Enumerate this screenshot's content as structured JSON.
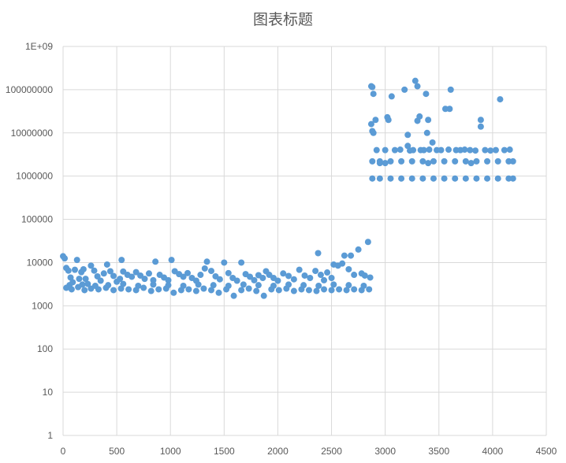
{
  "chart_data": {
    "type": "scatter",
    "title": "图表标题",
    "xlabel": "",
    "ylabel": "",
    "xlim": [
      0,
      4500
    ],
    "ylim": [
      1,
      1000000000
    ],
    "y_scale": "log",
    "grid": "on",
    "legend": "none",
    "marker_color": "#5b9bd5",
    "x_ticks": [
      "0",
      "500",
      "1000",
      "1500",
      "2000",
      "2500",
      "3000",
      "3500",
      "4000",
      "4500"
    ],
    "y_ticks": [
      "1",
      "10",
      "100",
      "1000",
      "10000",
      "100000",
      "1000000",
      "10000000",
      "100000000",
      "1E+09"
    ],
    "series": [
      {
        "points": [
          [
            0,
            14000
          ],
          [
            15,
            12500
          ],
          [
            30,
            7500
          ],
          [
            50,
            6500
          ],
          [
            70,
            4500
          ],
          [
            90,
            3500
          ],
          [
            110,
            6800
          ],
          [
            130,
            11500
          ],
          [
            150,
            4200
          ],
          [
            170,
            6000
          ],
          [
            190,
            7000
          ],
          [
            210,
            4200
          ],
          [
            230,
            3200
          ],
          [
            260,
            8500
          ],
          [
            290,
            6500
          ],
          [
            320,
            4800
          ],
          [
            350,
            3800
          ],
          [
            380,
            5600
          ],
          [
            410,
            9000
          ],
          [
            440,
            6300
          ],
          [
            470,
            4900
          ],
          [
            500,
            3600
          ],
          [
            530,
            4200
          ],
          [
            545,
            11500
          ],
          [
            560,
            6200
          ],
          [
            600,
            5200
          ],
          [
            640,
            4700
          ],
          [
            680,
            6000
          ],
          [
            720,
            5000
          ],
          [
            760,
            4200
          ],
          [
            800,
            5600
          ],
          [
            840,
            3900
          ],
          [
            860,
            10500
          ],
          [
            900,
            5200
          ],
          [
            940,
            4500
          ],
          [
            980,
            3900
          ],
          [
            1010,
            11500
          ],
          [
            1040,
            6300
          ],
          [
            1080,
            5400
          ],
          [
            1120,
            4700
          ],
          [
            1160,
            5700
          ],
          [
            1200,
            4400
          ],
          [
            1240,
            3800
          ],
          [
            1280,
            5200
          ],
          [
            1320,
            7300
          ],
          [
            1340,
            10500
          ],
          [
            1380,
            6400
          ],
          [
            1420,
            4800
          ],
          [
            1460,
            4100
          ],
          [
            1500,
            10000
          ],
          [
            1540,
            5700
          ],
          [
            1580,
            4400
          ],
          [
            1620,
            3800
          ],
          [
            1660,
            10000
          ],
          [
            1700,
            5400
          ],
          [
            1740,
            4700
          ],
          [
            1780,
            3900
          ],
          [
            1820,
            5100
          ],
          [
            1860,
            4400
          ],
          [
            1890,
            6300
          ],
          [
            1920,
            5200
          ],
          [
            1960,
            4400
          ],
          [
            2000,
            3800
          ],
          [
            2050,
            5600
          ],
          [
            2100,
            4900
          ],
          [
            2150,
            4100
          ],
          [
            2200,
            6800
          ],
          [
            2250,
            5000
          ],
          [
            2300,
            4400
          ],
          [
            2350,
            6400
          ],
          [
            2375,
            16500
          ],
          [
            2400,
            5200
          ],
          [
            2430,
            3900
          ],
          [
            2460,
            5900
          ],
          [
            2500,
            4400
          ],
          [
            2520,
            9000
          ],
          [
            2560,
            8500
          ],
          [
            2600,
            9500
          ],
          [
            2620,
            14500
          ],
          [
            2660,
            7000
          ],
          [
            2680,
            14500
          ],
          [
            2710,
            5200
          ],
          [
            2750,
            20000
          ],
          [
            2780,
            5600
          ],
          [
            2810,
            5000
          ],
          [
            2840,
            30000
          ],
          [
            2860,
            4500
          ],
          [
            30,
            2600
          ],
          [
            80,
            2400
          ],
          [
            140,
            2700
          ],
          [
            200,
            2300
          ],
          [
            260,
            2500
          ],
          [
            330,
            2400
          ],
          [
            400,
            2600
          ],
          [
            470,
            2300
          ],
          [
            540,
            2500
          ],
          [
            610,
            2400
          ],
          [
            680,
            2300
          ],
          [
            750,
            2600
          ],
          [
            820,
            2200
          ],
          [
            890,
            2400
          ],
          [
            960,
            2500
          ],
          [
            1030,
            2000
          ],
          [
            1100,
            2300
          ],
          [
            1170,
            2400
          ],
          [
            1240,
            2200
          ],
          [
            1310,
            2500
          ],
          [
            1380,
            2300
          ],
          [
            1450,
            2000
          ],
          [
            1520,
            2400
          ],
          [
            1590,
            1700
          ],
          [
            1660,
            2300
          ],
          [
            1730,
            2500
          ],
          [
            1800,
            2200
          ],
          [
            1870,
            1700
          ],
          [
            1940,
            2400
          ],
          [
            2010,
            2300
          ],
          [
            2080,
            2500
          ],
          [
            2150,
            2200
          ],
          [
            2220,
            2400
          ],
          [
            2290,
            2300
          ],
          [
            2360,
            2200
          ],
          [
            2430,
            2400
          ],
          [
            2500,
            2300
          ],
          [
            2570,
            2400
          ],
          [
            2640,
            2300
          ],
          [
            2710,
            2400
          ],
          [
            2780,
            2300
          ],
          [
            2850,
            2400
          ],
          [
            60,
            3000
          ],
          [
            180,
            3100
          ],
          [
            300,
            2900
          ],
          [
            420,
            3000
          ],
          [
            560,
            3200
          ],
          [
            700,
            2900
          ],
          [
            840,
            3100
          ],
          [
            980,
            3000
          ],
          [
            1120,
            2900
          ],
          [
            1260,
            3100
          ],
          [
            1400,
            3000
          ],
          [
            1540,
            2900
          ],
          [
            1680,
            3100
          ],
          [
            1820,
            3000
          ],
          [
            1960,
            2900
          ],
          [
            2100,
            3100
          ],
          [
            2240,
            3000
          ],
          [
            2380,
            2900
          ],
          [
            2520,
            3100
          ],
          [
            2660,
            3000
          ],
          [
            2800,
            2900
          ],
          [
            2870,
            120000000
          ],
          [
            2880,
            115000000
          ],
          [
            2890,
            80000000
          ],
          [
            2870,
            16000000
          ],
          [
            2880,
            11000000
          ],
          [
            2890,
            10000000
          ],
          [
            2910,
            20000000
          ],
          [
            2920,
            4000000
          ],
          [
            2950,
            2000000
          ],
          [
            3000,
            4000000
          ],
          [
            3020,
            23000000
          ],
          [
            3030,
            20000000
          ],
          [
            3060,
            70000000
          ],
          [
            3090,
            4000000
          ],
          [
            3140,
            4100000
          ],
          [
            3180,
            100000000
          ],
          [
            3210,
            9000000
          ],
          [
            3230,
            3900000
          ],
          [
            3260,
            4000000
          ],
          [
            3280,
            160000000
          ],
          [
            3300,
            120000000
          ],
          [
            3300,
            19000000
          ],
          [
            3320,
            24000000
          ],
          [
            3330,
            4000000
          ],
          [
            3360,
            4000000
          ],
          [
            3380,
            80000000
          ],
          [
            3390,
            10000000
          ],
          [
            3400,
            20000000
          ],
          [
            3410,
            4100000
          ],
          [
            3440,
            6000000
          ],
          [
            3480,
            4000000
          ],
          [
            3520,
            4000000
          ],
          [
            3560,
            36000000
          ],
          [
            3590,
            4100000
          ],
          [
            3600,
            36000000
          ],
          [
            3610,
            100000000
          ],
          [
            3660,
            4000000
          ],
          [
            3700,
            4000000
          ],
          [
            3740,
            4100000
          ],
          [
            3790,
            4000000
          ],
          [
            3840,
            3900000
          ],
          [
            3890,
            14000000
          ],
          [
            3890,
            20000000
          ],
          [
            3930,
            4000000
          ],
          [
            3980,
            3900000
          ],
          [
            4030,
            4000000
          ],
          [
            4070,
            60000000
          ],
          [
            4110,
            4000000
          ],
          [
            4160,
            4100000
          ],
          [
            3210,
            5000000
          ],
          [
            2880,
            2200000
          ],
          [
            2950,
            2200000
          ],
          [
            3050,
            2200000
          ],
          [
            3150,
            2200000
          ],
          [
            3250,
            2200000
          ],
          [
            3350,
            2200000
          ],
          [
            3450,
            2200000
          ],
          [
            3550,
            2200000
          ],
          [
            3650,
            2200000
          ],
          [
            3750,
            2200000
          ],
          [
            3850,
            2200000
          ],
          [
            3950,
            2200000
          ],
          [
            4050,
            2200000
          ],
          [
            4150,
            2200000
          ],
          [
            4190,
            2200000
          ],
          [
            3000,
            2000000
          ],
          [
            3400,
            2000000
          ],
          [
            3800,
            2000000
          ],
          [
            2880,
            880000
          ],
          [
            2950,
            880000
          ],
          [
            3050,
            880000
          ],
          [
            3150,
            880000
          ],
          [
            3250,
            880000
          ],
          [
            3350,
            880000
          ],
          [
            3450,
            880000
          ],
          [
            3550,
            880000
          ],
          [
            3650,
            880000
          ],
          [
            3750,
            880000
          ],
          [
            3850,
            880000
          ],
          [
            3950,
            880000
          ],
          [
            4050,
            880000
          ],
          [
            4150,
            880000
          ],
          [
            4190,
            880000
          ]
        ]
      }
    ]
  }
}
